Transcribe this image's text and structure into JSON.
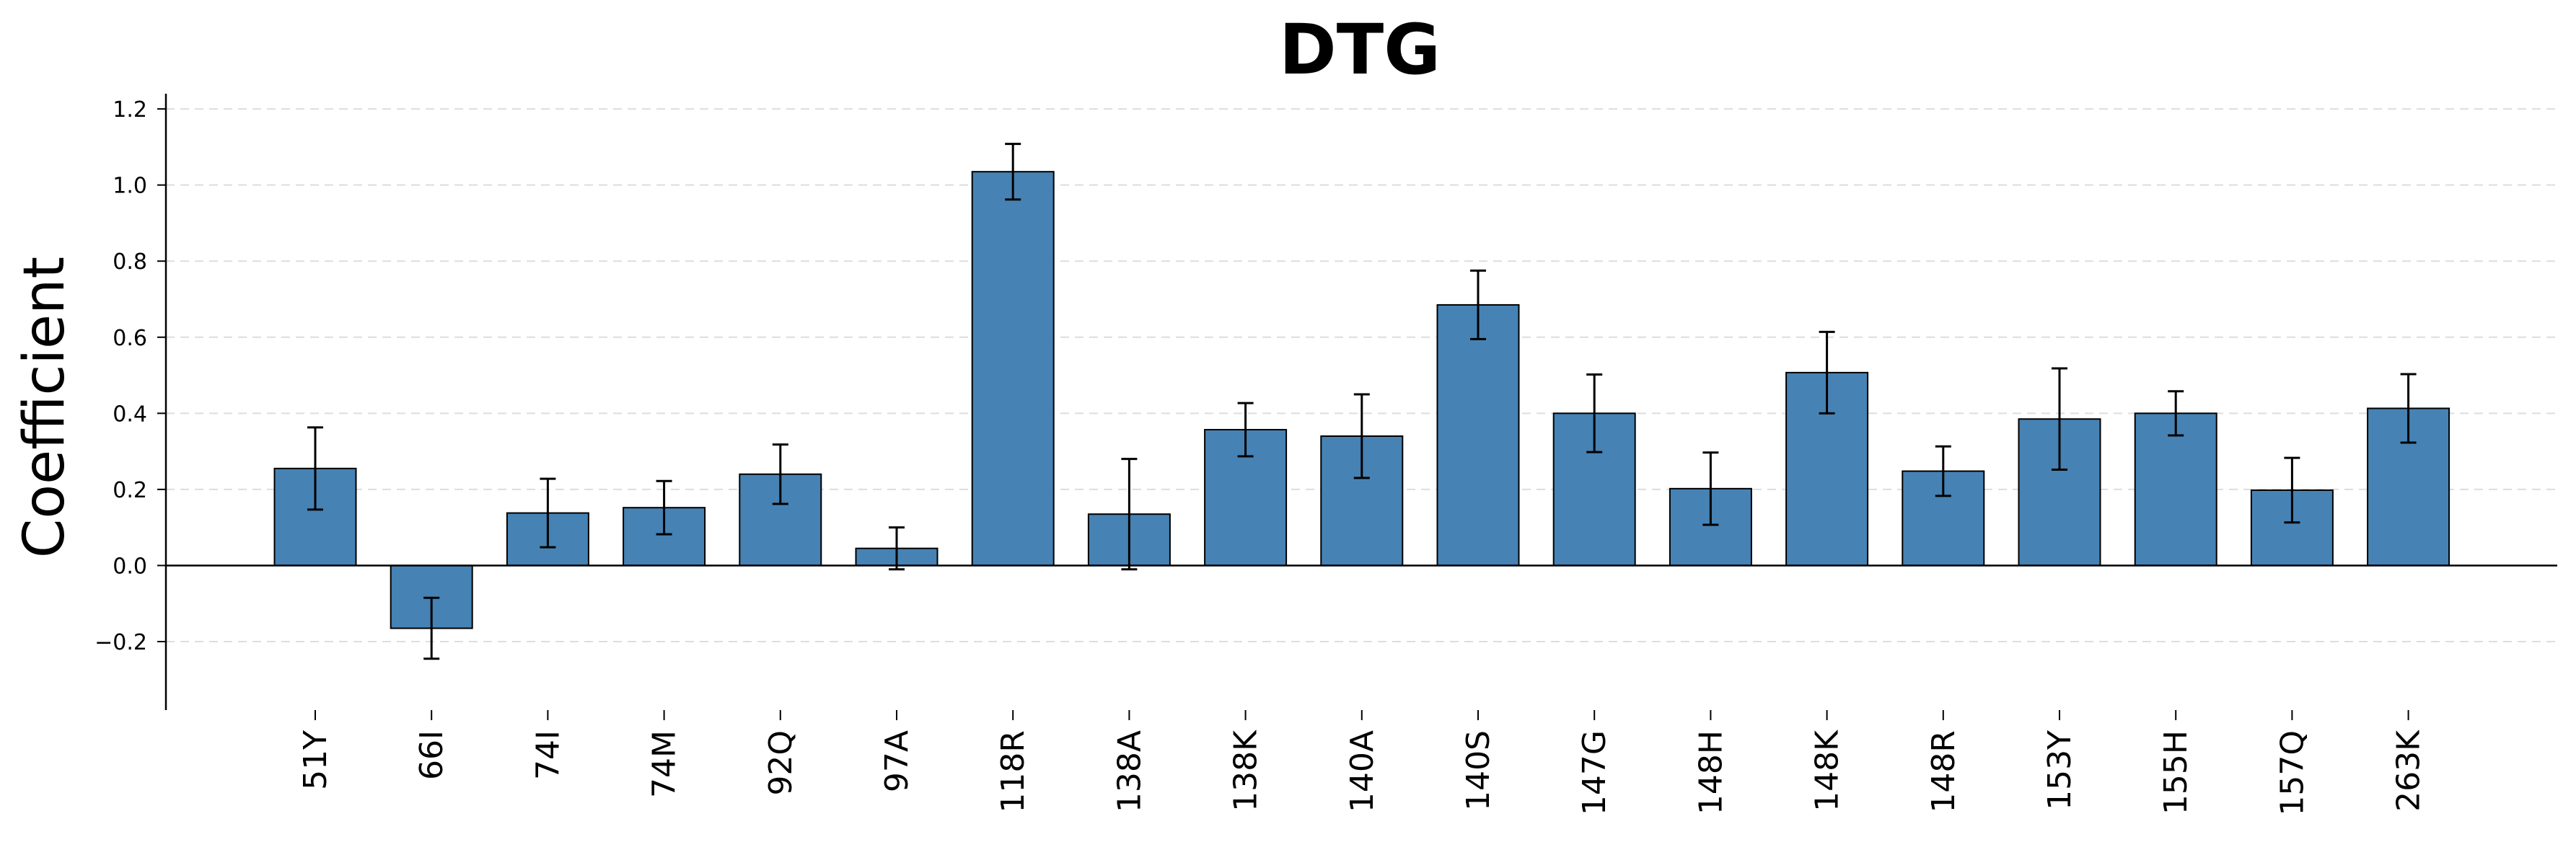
{
  "chart_data": {
    "type": "bar",
    "title": "DTG",
    "xlabel": "",
    "ylabel": "Coefficient",
    "categories": [
      "51Y",
      "66I",
      "74I",
      "74M",
      "92Q",
      "97A",
      "118R",
      "138A",
      "138K",
      "140A",
      "140S",
      "147G",
      "148H",
      "148K",
      "148R",
      "153Y",
      "155H",
      "157Q",
      "263K"
    ],
    "series": [
      {
        "values": [
          0.255,
          -0.165,
          0.138,
          0.152,
          0.24,
          0.045,
          1.035,
          0.135,
          0.357,
          0.34,
          0.685,
          0.4,
          0.202,
          0.507,
          0.248,
          0.385,
          0.4,
          0.198,
          0.413
        ],
        "error": [
          0.108,
          0.08,
          0.09,
          0.07,
          0.078,
          0.055,
          0.073,
          0.145,
          0.07,
          0.11,
          0.09,
          0.102,
          0.095,
          0.107,
          0.065,
          0.133,
          0.058,
          0.085,
          0.09
        ]
      }
    ],
    "ylim": [
      -0.38,
      1.24
    ],
    "yticks": [
      -0.2,
      0.0,
      0.2,
      0.4,
      0.6,
      0.8,
      1.0,
      1.2
    ],
    "grid": "horizontal-dashed",
    "legend": "none",
    "bar_color": "#4682b4",
    "edge_color": "#000000",
    "grid_color": "#dddddd"
  }
}
